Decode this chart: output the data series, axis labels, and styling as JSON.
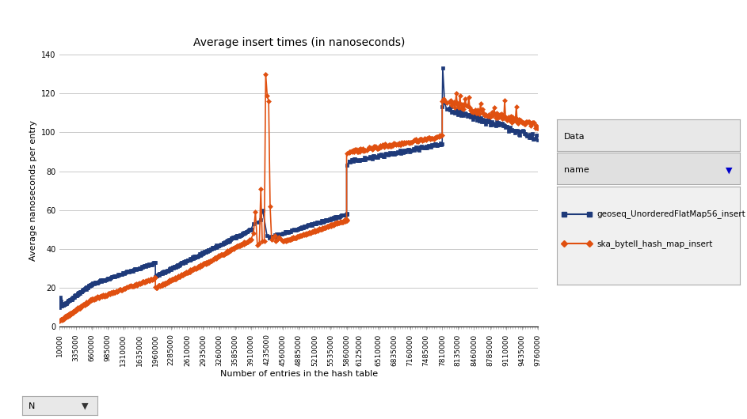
{
  "title": "Average insert times (in nanoseconds)",
  "xlabel": "Number of entries in the hash table",
  "ylabel": "Average nanoseconds per entry",
  "ylim": [
    0,
    140
  ],
  "yticks": [
    0,
    20,
    40,
    60,
    80,
    100,
    120,
    140
  ],
  "series": {
    "geoseq": {
      "label": "geoseq_UnorderedFlatMap56_insert",
      "color": "#1e3a7a",
      "marker": "s",
      "linewidth": 1.2,
      "markersize": 3
    },
    "ska": {
      "label": "ska_bytell_hash_map_insert",
      "color": "#e05010",
      "marker": "D",
      "linewidth": 1.2,
      "markersize": 3
    }
  },
  "x_ticks_shown": [
    10000,
    335000,
    660000,
    985000,
    1310000,
    1635000,
    1960000,
    2285000,
    2610000,
    2935000,
    3260000,
    3585000,
    3910000,
    4235000,
    4560000,
    4885000,
    5210000,
    5535000,
    5860000,
    6125000,
    6510000,
    6835000,
    7160000,
    7485000,
    7810000,
    8135000,
    8460000,
    8785000,
    9110000,
    9435000,
    9760000
  ],
  "background_color": "#ffffff",
  "grid_color": "#c8c8c8"
}
